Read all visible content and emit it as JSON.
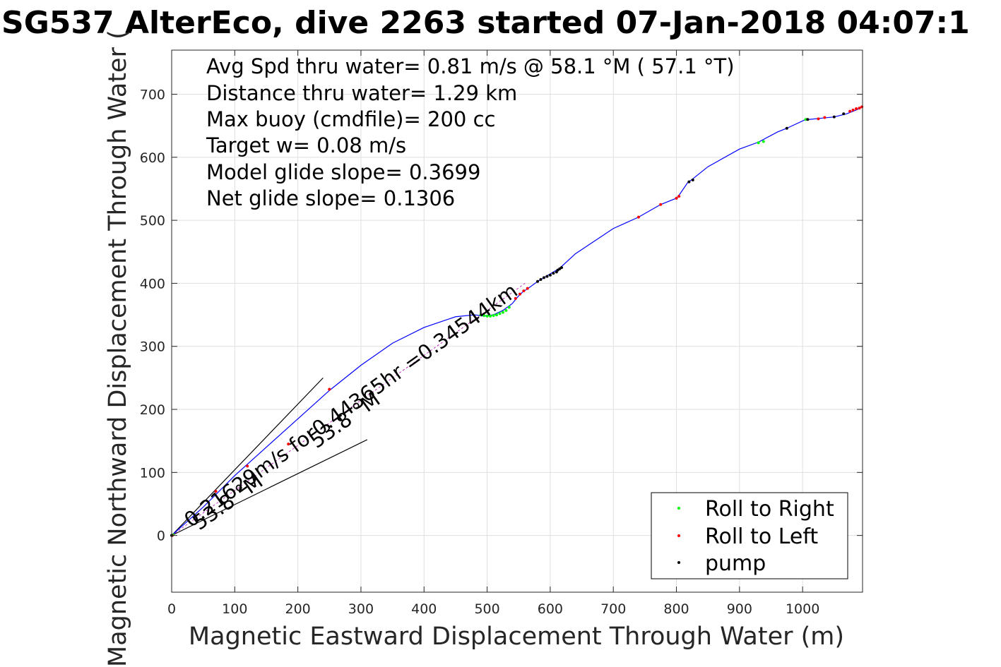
{
  "chart_data": {
    "type": "line",
    "title": "SG537 AlterEco, dive 2263 started 07-Jan-2018 04:07:1",
    "xlabel": "Magnetic Eastward Displacement Through Water (m)",
    "ylabel": "Magnetic Northward Displacement Through Water (",
    "xlim": [
      0,
      1095
    ],
    "ylim": [
      -90,
      770
    ],
    "xticks": [
      0,
      100,
      200,
      300,
      400,
      500,
      600,
      700,
      800,
      900,
      1000
    ],
    "yticks": [
      0,
      100,
      200,
      300,
      400,
      500,
      600,
      700
    ],
    "grid": true,
    "legend_position": "bottom-right",
    "stats": [
      "Avg Spd thru water=  0.81 m/s @  58.1 °M ( 57.1 °T)",
      "Distance thru water=  1.29 km",
      "Max buoy (cmdfile)= 200 cc",
      "Target w= 0.08 m/s",
      "Model glide slope= 0.3699",
      "Net glide slope= 0.1306"
    ],
    "annotations": {
      "current_label": "0.21629m/s for0.44365hr =0.34544km",
      "heading_label_1": "53.8 °M",
      "heading_label_2": "53.8 °M"
    },
    "track": {
      "name": "track",
      "color": "#0000ff",
      "x": [
        0,
        50,
        100,
        150,
        200,
        250,
        300,
        350,
        400,
        450,
        480,
        495,
        510,
        525,
        540,
        548,
        556,
        565,
        580,
        600,
        615,
        640,
        700,
        740,
        775,
        800,
        805,
        818,
        825,
        850,
        900,
        930,
        960,
        975,
        1005,
        1010,
        1030,
        1050,
        1070,
        1085,
        1095
      ],
      "y": [
        0,
        45,
        95,
        140,
        185,
        230,
        270,
        305,
        330,
        347,
        350,
        348,
        350,
        357,
        368,
        378,
        386,
        392,
        403,
        415,
        424,
        447,
        487,
        505,
        525,
        535,
        541,
        560,
        565,
        585,
        613,
        624,
        640,
        646,
        660,
        660,
        662,
        664,
        669,
        675,
        680
      ]
    },
    "markers": {
      "roll_right": {
        "name": "Roll to Right",
        "color": "#00ff00",
        "x": [
          2,
          490,
          495,
          500,
          505,
          510,
          515,
          520,
          525,
          530,
          535,
          930,
          938,
          1005
        ],
        "y": [
          1,
          350,
          349,
          348,
          348,
          349,
          350,
          352,
          354,
          357,
          362,
          623,
          625,
          660
        ]
      },
      "roll_left": {
        "name": "Roll to Left",
        "color": "#ff0000",
        "x": [
          1,
          70,
          120,
          185,
          250,
          545,
          552,
          558,
          564,
          740,
          775,
          800,
          804,
          1025,
          1035,
          1075,
          1080,
          1085,
          1090,
          1094
        ],
        "y": [
          0,
          70,
          110,
          145,
          232,
          376,
          383,
          388,
          392,
          505,
          525,
          535,
          538,
          661,
          663,
          673,
          675,
          677,
          678,
          680
        ]
      },
      "pump": {
        "name": "pump",
        "color": "#000000",
        "x": [
          0,
          580,
          585,
          590,
          595,
          600,
          605,
          610,
          612,
          615,
          618,
          820,
          826,
          975,
          1008,
          1050,
          1065
        ],
        "y": [
          0,
          403,
          406,
          409,
          411,
          413,
          416,
          418,
          421,
          423,
          425,
          561,
          564,
          646,
          660,
          664,
          669
        ]
      }
    },
    "reference_lines": [
      {
        "name": "upper",
        "x": [
          0,
          240
        ],
        "y": [
          0,
          250
        ]
      },
      {
        "name": "lower",
        "x": [
          0,
          310
        ],
        "y": [
          0,
          152
        ]
      }
    ],
    "current_vector": {
      "x": [
        0,
        560
      ],
      "y": [
        0,
        400
      ]
    }
  }
}
